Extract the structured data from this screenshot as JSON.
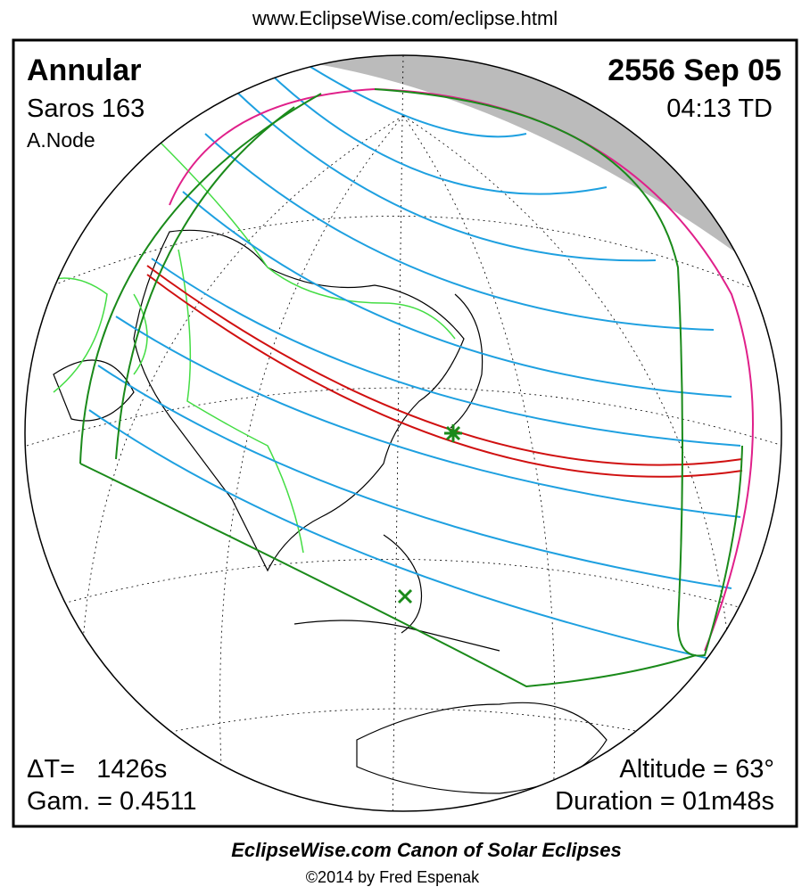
{
  "header": {
    "url": "www.EclipseWise.com/eclipse.html"
  },
  "panel": {
    "type": "Annular",
    "saros": "Saros 163",
    "node": "A.Node",
    "date": "2556 Sep 05",
    "time": "04:13 TD",
    "delta_t": "ΔT=   1426s",
    "gamma": "Gam. = 0.4511",
    "altitude": "Altitude = 63°",
    "duration": "Duration = 01m48s"
  },
  "footer": {
    "title": "EclipseWise.com Canon of Solar Eclipses",
    "credit": "©2014 by Fred Espenak"
  }
}
